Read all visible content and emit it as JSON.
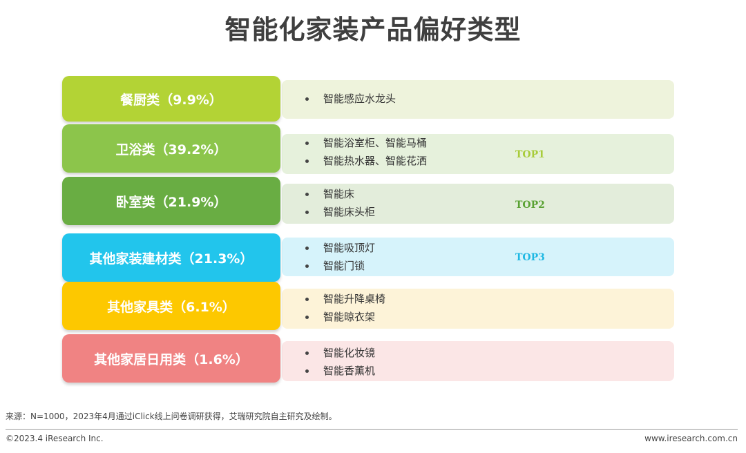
{
  "title": "智能化家装产品偏好类型",
  "categories": [
    {
      "label": "餐厨类（9.9%）",
      "share_percent": 9.9,
      "color": "#b3d335",
      "panel_color": "#eef3dc",
      "items": [
        "智能感应水龙头"
      ],
      "top": ""
    },
    {
      "label": "卫浴类（39.2%）",
      "share_percent": 39.2,
      "color": "#8cc54b",
      "panel_color": "#e6f1dc",
      "items": [
        "智能浴室柜、智能马桶",
        "智能热水器、智能花洒"
      ],
      "top": "TOP1",
      "top_color": "#a8cc3a"
    },
    {
      "label": "卧室类（21.9%）",
      "share_percent": 21.9,
      "color": "#69ad43",
      "panel_color": "#e3eddb",
      "items": [
        "智能床",
        "智能床头柜"
      ],
      "top": "TOP2",
      "top_color": "#5aa233"
    },
    {
      "label": "其他家装建材类（21.3%）",
      "share_percent": 21.3,
      "color": "#22c5ec",
      "panel_color": "#d6f3fb",
      "items": [
        "智能吸顶灯",
        "智能门锁"
      ],
      "top": "TOP3",
      "top_color": "#1fb8e3"
    },
    {
      "label": "其他家具类（6.1%）",
      "share_percent": 6.1,
      "color": "#fdc800",
      "panel_color": "#fdf3d8",
      "items": [
        "智能升降桌椅",
        "智能晾衣架"
      ],
      "top": ""
    },
    {
      "label": "其他家居日用类（1.6%）",
      "share_percent": 1.6,
      "color": "#f08383",
      "panel_color": "#fbe6e6",
      "items": [
        "智能化妆镜",
        "智能香薰机"
      ],
      "top": ""
    }
  ],
  "footer": {
    "source": "来源：N=1000，2023年4月通过iClick线上问卷调研获得，艾瑞研究院自主研究及绘制。",
    "copyright": "©2023.4 iResearch Inc.",
    "website": "www.iresearch.com.cn"
  }
}
